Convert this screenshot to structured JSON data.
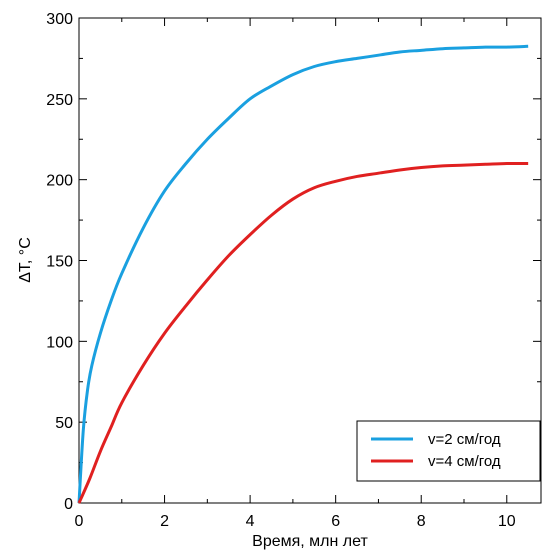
{
  "chart_data": {
    "type": "line",
    "title": "",
    "xlabel": "Время, млн лет",
    "ylabel": "ΔT, °C",
    "xlim": [
      0,
      10.8
    ],
    "ylim": [
      0,
      300
    ],
    "x_ticks": [
      0,
      2,
      4,
      6,
      8,
      10
    ],
    "y_ticks": [
      0,
      50,
      100,
      150,
      200,
      250,
      300
    ],
    "grid": false,
    "legend_position": "bottom-right",
    "series": [
      {
        "name": "v=2 см/год",
        "color": "#1aa0e0",
        "x": [
          0,
          0.1,
          0.2,
          0.3,
          0.5,
          0.75,
          1,
          1.5,
          2,
          2.5,
          3,
          3.5,
          4,
          4.5,
          5,
          5.5,
          6,
          6.5,
          7,
          7.5,
          8,
          8.5,
          9,
          9.5,
          10,
          10.5
        ],
        "y": [
          0,
          45,
          70,
          85,
          105,
          125,
          142,
          170,
          193,
          210,
          225,
          238,
          250,
          258,
          265,
          270,
          273,
          275,
          277,
          279,
          280,
          281,
          281.5,
          282,
          282,
          282.5
        ]
      },
      {
        "name": "v=4 см/год",
        "color": "#e02020",
        "x": [
          0,
          0.25,
          0.5,
          0.75,
          1,
          1.5,
          2,
          2.5,
          3,
          3.5,
          4,
          4.5,
          5,
          5.5,
          6,
          6.5,
          7,
          7.5,
          8,
          8.5,
          9,
          9.5,
          10,
          10.5
        ],
        "y": [
          0,
          15,
          32,
          47,
          62,
          85,
          105,
          122,
          138,
          153,
          166,
          178,
          188,
          195,
          199,
          202,
          204,
          206,
          207.5,
          208.5,
          209,
          209.5,
          210,
          210
        ]
      }
    ]
  }
}
